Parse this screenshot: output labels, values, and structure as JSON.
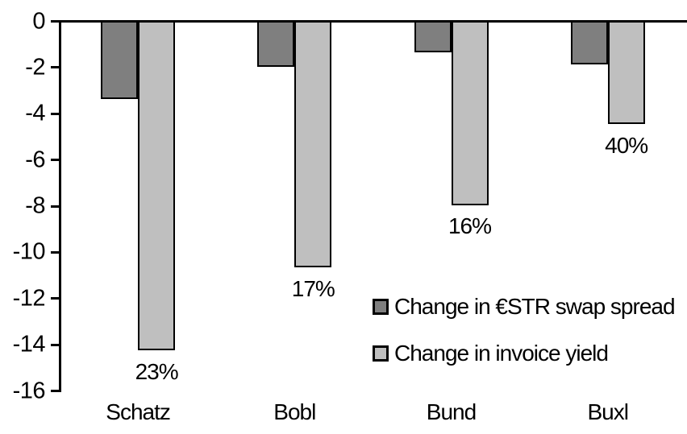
{
  "chart_data": {
    "type": "bar",
    "orientation": "vertical",
    "categories": [
      "Schatz",
      "Bobl",
      "Bund",
      "Buxl"
    ],
    "series": [
      {
        "name": "Change in €STR swap spread",
        "slug": "swap-spread",
        "color": "#7F7F7F",
        "values": [
          -3.3,
          -1.9,
          -1.3,
          -1.8
        ]
      },
      {
        "name": "Change in invoice yield",
        "slug": "invoice-yield",
        "color": "#BFBFBF",
        "values": [
          -14.2,
          -10.6,
          -7.9,
          -4.4
        ],
        "point_labels": [
          "23%",
          "17%",
          "16%",
          "40%"
        ]
      }
    ],
    "title": "",
    "xlabel": "",
    "ylabel": "",
    "ylim": [
      -16,
      0
    ],
    "yticks": [
      0,
      -2,
      -4,
      -6,
      -8,
      -10,
      -12,
      -14,
      -16
    ],
    "grid": false,
    "legend_position": "inside-right",
    "bar_outline_color": "#000000",
    "axis_color": "#000000",
    "text_color": "#000000",
    "background": "#FFFFFF"
  }
}
